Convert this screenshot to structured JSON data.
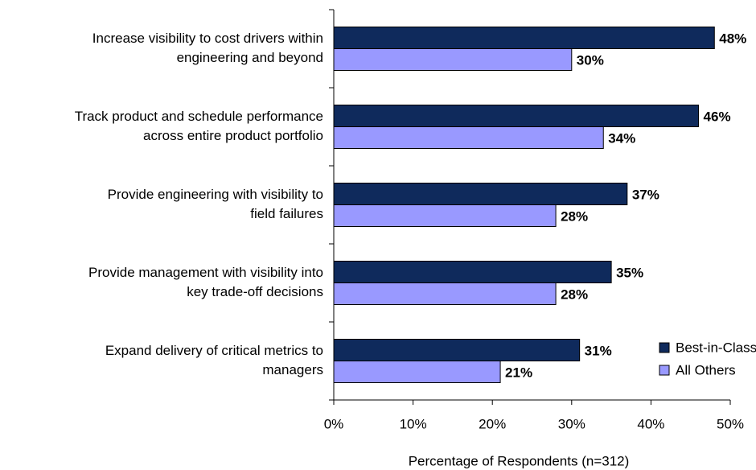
{
  "chart_data": {
    "type": "hbar",
    "categories": [
      [
        "Increase visibility to cost drivers within",
        "engineering and beyond"
      ],
      [
        "Track product and schedule performance",
        "across entire product portfolio"
      ],
      [
        "Provide engineering with visibility to",
        "field failures"
      ],
      [
        "Provide management with visibility into",
        "key trade-off decisions"
      ],
      [
        "Expand delivery of critical metrics to",
        "managers"
      ]
    ],
    "series": [
      {
        "name": "Best-in-Class",
        "color": "#0f2a5c",
        "values": [
          48,
          46,
          37,
          35,
          31
        ],
        "value_labels": [
          "48%",
          "46%",
          "37%",
          "35%",
          "31%"
        ]
      },
      {
        "name": "All Others",
        "color": "#9999ff",
        "values": [
          30,
          34,
          28,
          28,
          21
        ],
        "value_labels": [
          "30%",
          "34%",
          "28%",
          "28%",
          "21%"
        ]
      }
    ],
    "xlim": [
      0,
      50
    ],
    "xticks": [
      {
        "value": 0,
        "label": "0%"
      },
      {
        "value": 10,
        "label": "10%"
      },
      {
        "value": 20,
        "label": "20%"
      },
      {
        "value": 30,
        "label": "30%"
      },
      {
        "value": 40,
        "label": "40%"
      },
      {
        "value": 50,
        "label": "50%"
      }
    ],
    "xlabel": "Percentage of Respondents (n=312)",
    "legend": "lower right"
  }
}
